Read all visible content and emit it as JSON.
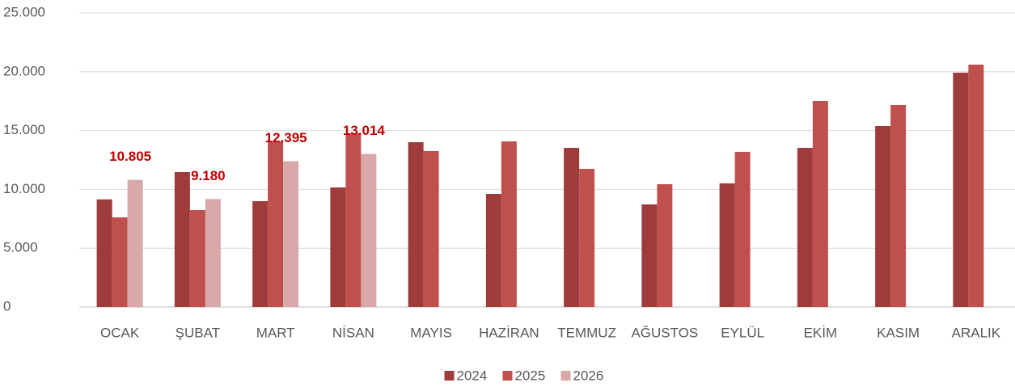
{
  "chart_data": {
    "type": "bar",
    "categories": [
      "OCAK",
      "ŞUBAT",
      "MART",
      "NİSAN",
      "MAYIS",
      "HAZİRAN",
      "TEMMUZ",
      "AĞUSTOS",
      "EYLÜL",
      "EKİM",
      "KASIM",
      "ARALIK"
    ],
    "series": [
      {
        "name": "2024",
        "color": "#9e3b3b",
        "values": [
          9150,
          11470,
          9000,
          10165,
          14010,
          9615,
          13530,
          8720,
          10510,
          13530,
          15385,
          19920
        ]
      },
      {
        "name": "2025",
        "color": "#c0504d",
        "values": [
          7620,
          8240,
          14080,
          14770,
          13255,
          14080,
          11745,
          10440,
          13190,
          17515,
          17170,
          20605
        ]
      },
      {
        "name": "2026",
        "color": "#d9a8a8",
        "values": [
          10805,
          9180,
          12395,
          13014,
          null,
          null,
          null,
          null,
          null,
          null,
          null,
          null
        ],
        "value_labels": [
          "10.805",
          "9.180",
          "12.395",
          "13.014",
          null,
          null,
          null,
          null,
          null,
          null,
          null,
          null
        ]
      }
    ],
    "ylim": [
      0,
      25000
    ],
    "yticks": [
      0,
      {
        "value": 5000,
        "label": "5.000"
      },
      {
        "value": 10000,
        "label": "10.000"
      },
      {
        "value": 15000,
        "label": "15.000"
      },
      {
        "value": 20000,
        "label": "20.000"
      },
      {
        "value": 25000,
        "label": "25.000"
      }
    ],
    "grid": true,
    "legend": "bottom",
    "value_label_color": "#c00000"
  }
}
